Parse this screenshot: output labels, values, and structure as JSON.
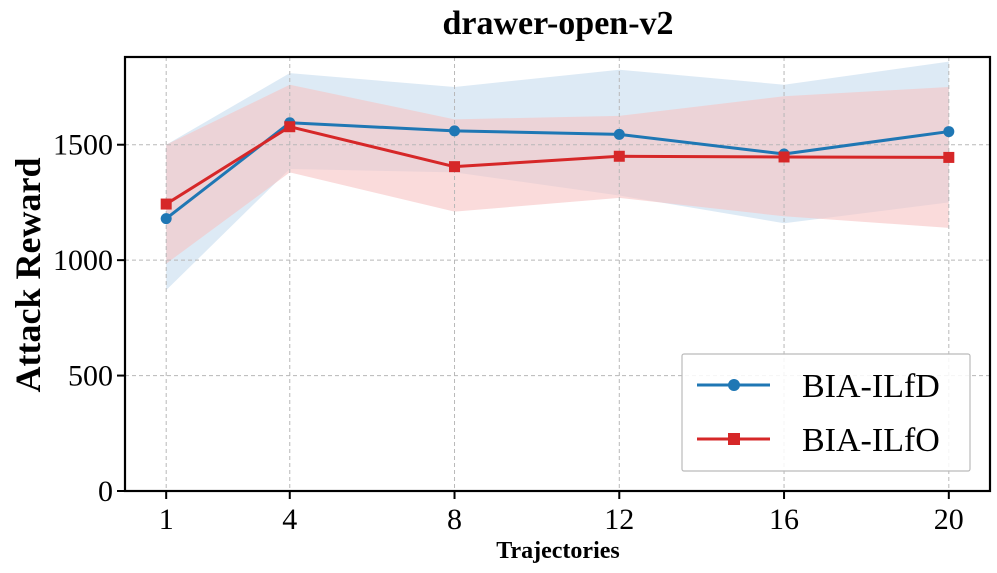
{
  "chart_data": {
    "type": "line",
    "title": "drawer-open-v2",
    "xlabel": "Trajectories",
    "ylabel": "Attack Reward",
    "categories": [
      "1",
      "4",
      "8",
      "12",
      "16",
      "20"
    ],
    "x": [
      1,
      4,
      8,
      12,
      16,
      20
    ],
    "xlim": [
      0,
      21
    ],
    "ylim": [
      0,
      1880
    ],
    "yticks": [
      0,
      500,
      1000,
      1500
    ],
    "grid": true,
    "legend_position": "bottom-right",
    "series": [
      {
        "name": "BIA-ILfD",
        "color": "#1f77b4",
        "marker": "circle",
        "values": [
          1180,
          1595,
          1560,
          1545,
          1460,
          1557
        ],
        "band_upper": [
          1500,
          1810,
          1750,
          1825,
          1760,
          1860
        ],
        "band_lower": [
          870,
          1395,
          1380,
          1280,
          1160,
          1250
        ],
        "band_color": "#c7dcef"
      },
      {
        "name": "BIA-ILfO",
        "color": "#d62728",
        "marker": "square",
        "values": [
          1243,
          1578,
          1405,
          1450,
          1447,
          1445
        ],
        "band_upper": [
          1500,
          1760,
          1610,
          1625,
          1710,
          1750
        ],
        "band_lower": [
          985,
          1380,
          1210,
          1270,
          1190,
          1140
        ],
        "band_color": "#f6c3c3"
      }
    ]
  }
}
